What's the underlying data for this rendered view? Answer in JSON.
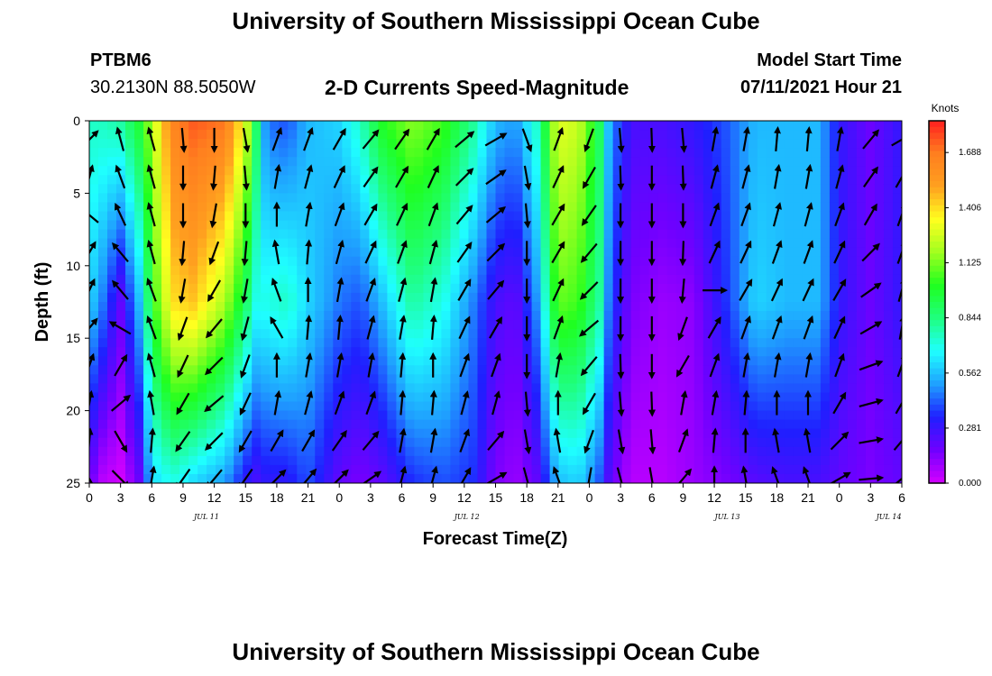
{
  "header": {
    "title": "University of Southern Mississippi Ocean Cube",
    "station": "PTBM6",
    "coords": "30.2130N  88.5050W",
    "chart_title": "2-D Currents Speed-Magnitude",
    "model_label": "Model Start Time",
    "model_time": "07/11/2021 Hour 21"
  },
  "footer": {
    "title": "University of Southern Mississippi Ocean Cube"
  },
  "chart_data": {
    "type": "heatmap",
    "xlabel": "Forecast Time(Z)",
    "ylabel": "Depth (ft)",
    "x_tick_labels": [
      "0",
      "3",
      "6",
      "9",
      "12",
      "15",
      "18",
      "21",
      "0",
      "3",
      "6",
      "9",
      "12",
      "15",
      "18",
      "21",
      "0",
      "3",
      "6",
      "9",
      "12",
      "15",
      "18",
      "21",
      "0",
      "3",
      "6"
    ],
    "date_labels": [
      {
        "label": "JUL 11",
        "tick_index": 4.5
      },
      {
        "label": "JUL 12",
        "tick_index": 14.5
      },
      {
        "label": "JUL 13",
        "tick_index": 24.5
      },
      {
        "label": "JUL 14",
        "tick_index": 30.7
      }
    ],
    "y_ticks": [
      0,
      5,
      10,
      15,
      20,
      25
    ],
    "ylim": [
      0,
      25
    ],
    "colorbar": {
      "unit": "Knots",
      "tick_labels": [
        "0.000",
        "0.281",
        "0.562",
        "0.844",
        "1.125",
        "1.406",
        "1.688"
      ],
      "min": 0,
      "max": 1.85,
      "colors": [
        "#d400ff",
        "#7000ff",
        "#1f1fff",
        "#1fa0ff",
        "#1fffff",
        "#1fff7f",
        "#1fff1f",
        "#a0ff1f",
        "#ffff1f",
        "#ffa01f",
        "#ff7f1f",
        "#ff1f1f"
      ]
    },
    "speed_profiles": [
      {
        "hour": 0,
        "top": 0.75,
        "mid": 0.6,
        "bottom": 0.2
      },
      {
        "hour": 1,
        "top": 0.75,
        "mid": 0.5,
        "bottom": 0.05
      },
      {
        "hour": 3,
        "top": 0.8,
        "mid": 0.2,
        "bottom": 0.0
      },
      {
        "hour": 5,
        "top": 1.0,
        "mid": 0.6,
        "bottom": 0.2
      },
      {
        "hour": 6,
        "top": 1.2,
        "mid": 1.0,
        "bottom": 0.6
      },
      {
        "hour": 8,
        "top": 1.65,
        "mid": 1.4,
        "bottom": 0.7
      },
      {
        "hour": 10,
        "top": 1.75,
        "mid": 1.45,
        "bottom": 0.6
      },
      {
        "hour": 13,
        "top": 1.7,
        "mid": 1.2,
        "bottom": 0.5
      },
      {
        "hour": 15,
        "top": 1.3,
        "mid": 0.9,
        "bottom": 0.3
      },
      {
        "hour": 16,
        "top": 0.9,
        "mid": 0.7,
        "bottom": 0.25
      },
      {
        "hour": 17,
        "top": 0.45,
        "mid": 0.7,
        "bottom": 0.3
      },
      {
        "hour": 19,
        "top": 0.4,
        "mid": 0.75,
        "bottom": 0.3
      },
      {
        "hour": 21,
        "top": 0.55,
        "mid": 0.6,
        "bottom": 0.4
      },
      {
        "hour": 24,
        "top": 0.6,
        "mid": 0.45,
        "bottom": 0.2
      },
      {
        "hour": 26,
        "top": 0.75,
        "mid": 0.4,
        "bottom": 0.15
      },
      {
        "hour": 28,
        "top": 1.0,
        "mid": 0.55,
        "bottom": 0.2
      },
      {
        "hour": 31,
        "top": 1.15,
        "mid": 0.8,
        "bottom": 0.35
      },
      {
        "hour": 34,
        "top": 1.05,
        "mid": 0.7,
        "bottom": 0.4
      },
      {
        "hour": 37,
        "top": 0.8,
        "mid": 0.45,
        "bottom": 0.35
      },
      {
        "hour": 39,
        "top": 0.55,
        "mid": 0.25,
        "bottom": 0.15
      },
      {
        "hour": 41,
        "top": 0.5,
        "mid": 0.2,
        "bottom": 0.1
      },
      {
        "hour": 43,
        "top": 0.75,
        "mid": 0.5,
        "bottom": 0.2
      },
      {
        "hour": 45,
        "top": 1.3,
        "mid": 1.1,
        "bottom": 0.55
      },
      {
        "hour": 47,
        "top": 1.25,
        "mid": 1.05,
        "bottom": 0.6
      },
      {
        "hour": 49,
        "top": 0.9,
        "mid": 0.8,
        "bottom": 0.4
      },
      {
        "hour": 50,
        "top": 0.5,
        "mid": 0.4,
        "bottom": 0.2
      },
      {
        "hour": 52,
        "top": 0.25,
        "mid": 0.15,
        "bottom": 0.05
      },
      {
        "hour": 55,
        "top": 0.25,
        "mid": 0.1,
        "bottom": 0.05
      },
      {
        "hour": 58,
        "top": 0.3,
        "mid": 0.12,
        "bottom": 0.1
      },
      {
        "hour": 61,
        "top": 0.4,
        "mid": 0.35,
        "bottom": 0.15
      },
      {
        "hour": 64,
        "top": 0.55,
        "mid": 0.6,
        "bottom": 0.22
      },
      {
        "hour": 67,
        "top": 0.55,
        "mid": 0.55,
        "bottom": 0.25
      },
      {
        "hour": 70,
        "top": 0.55,
        "mid": 0.55,
        "bottom": 0.25
      },
      {
        "hour": 72,
        "top": 0.3,
        "mid": 0.3,
        "bottom": 0.2
      },
      {
        "hour": 75,
        "top": 0.18,
        "mid": 0.18,
        "bottom": 0.15
      },
      {
        "hour": 78,
        "top": 0.3,
        "mid": 0.3,
        "bottom": 0.2
      }
    ],
    "vector_hours": [
      0,
      3,
      6,
      9,
      12,
      15,
      18,
      21,
      24,
      27,
      30,
      33,
      36,
      39,
      42,
      45,
      48,
      51,
      54,
      57,
      60,
      63,
      66,
      69,
      72,
      75,
      78
    ],
    "vector_directions_deg": [
      [
        45,
        15,
        -50,
        30,
        25,
        40,
        20,
        10,
        5,
        -30
      ],
      [
        -15,
        -20,
        -25,
        -40,
        -40,
        -60,
        30,
        50,
        150,
        135
      ],
      [
        -15,
        -15,
        -15,
        -15,
        -20,
        -20,
        -15,
        -10,
        5,
        10
      ],
      [
        175,
        180,
        180,
        185,
        190,
        200,
        205,
        210,
        215,
        215
      ],
      [
        180,
        185,
        190,
        200,
        210,
        220,
        225,
        230,
        225,
        220
      ],
      [
        170,
        175,
        180,
        185,
        190,
        195,
        200,
        205,
        210,
        215
      ],
      [
        20,
        10,
        0,
        350,
        340,
        330,
        0,
        10,
        30,
        45
      ],
      [
        20,
        15,
        10,
        5,
        0,
        5,
        10,
        15,
        30,
        40
      ],
      [
        30,
        25,
        20,
        15,
        10,
        5,
        10,
        20,
        35,
        45
      ],
      [
        40,
        35,
        30,
        25,
        20,
        15,
        10,
        20,
        40,
        55
      ],
      [
        35,
        30,
        25,
        20,
        15,
        10,
        5,
        5,
        10,
        15
      ],
      [
        30,
        25,
        20,
        15,
        10,
        5,
        0,
        5,
        10,
        15
      ],
      [
        50,
        45,
        40,
        35,
        30,
        25,
        20,
        15,
        20,
        30
      ],
      [
        60,
        55,
        50,
        45,
        40,
        30,
        20,
        15,
        40,
        60
      ],
      [
        160,
        170,
        175,
        180,
        180,
        180,
        180,
        175,
        170,
        165
      ],
      [
        20,
        25,
        30,
        30,
        25,
        20,
        10,
        0,
        350,
        340
      ],
      [
        200,
        210,
        215,
        220,
        225,
        230,
        220,
        210,
        200,
        190
      ],
      [
        175,
        178,
        180,
        180,
        180,
        180,
        178,
        175,
        170,
        165
      ],
      [
        178,
        180,
        180,
        180,
        180,
        180,
        180,
        178,
        175,
        170
      ],
      [
        175,
        178,
        180,
        182,
        185,
        200,
        210,
        10,
        20,
        40
      ],
      [
        10,
        15,
        20,
        25,
        90,
        30,
        20,
        10,
        5,
        0
      ],
      [
        10,
        15,
        20,
        25,
        30,
        20,
        10,
        5,
        0,
        350
      ],
      [
        5,
        10,
        15,
        20,
        25,
        20,
        10,
        0,
        350,
        340
      ],
      [
        5,
        10,
        15,
        20,
        25,
        20,
        10,
        0,
        350,
        340
      ],
      [
        10,
        15,
        20,
        25,
        30,
        25,
        20,
        30,
        45,
        60
      ],
      [
        40,
        35,
        30,
        45,
        55,
        60,
        70,
        75,
        80,
        85
      ],
      [
        60,
        30,
        20,
        20,
        15,
        10,
        20,
        30,
        40,
        50
      ]
    ]
  }
}
